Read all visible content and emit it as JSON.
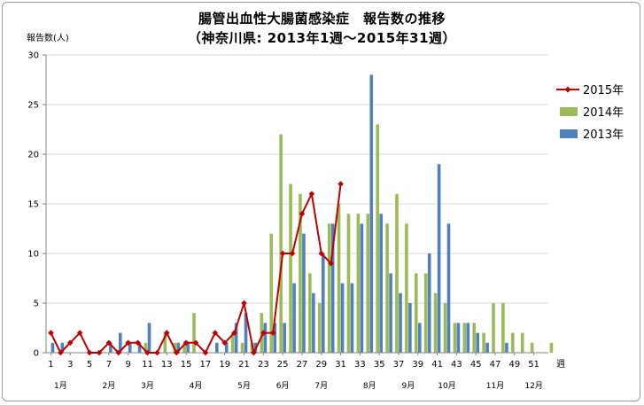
{
  "chart_data": {
    "type": "bar",
    "title": "腸管出血性大腸菌感染症　報告数の推移",
    "subtitle": "（神奈川県: 2013年1週～2015年31週）",
    "ylabel": "報告数(人)",
    "xlabel": "週",
    "ylim": [
      0,
      30
    ],
    "yticks": [
      0,
      5,
      10,
      15,
      20,
      25,
      30
    ],
    "xticks": [
      1,
      3,
      5,
      7,
      9,
      11,
      13,
      15,
      17,
      19,
      21,
      23,
      25,
      27,
      29,
      31,
      33,
      35,
      37,
      39,
      41,
      43,
      45,
      47,
      49,
      51
    ],
    "month_labels": [
      {
        "label": "1月",
        "week": 2
      },
      {
        "label": "2月",
        "week": 7
      },
      {
        "label": "3月",
        "week": 11
      },
      {
        "label": "4月",
        "week": 16
      },
      {
        "label": "5月",
        "week": 21
      },
      {
        "label": "6月",
        "week": 25
      },
      {
        "label": "7月",
        "week": 29
      },
      {
        "label": "8月",
        "week": 34
      },
      {
        "label": "9月",
        "week": 38
      },
      {
        "label": "10月",
        "week": 42
      },
      {
        "label": "11月",
        "week": 47
      },
      {
        "label": "12月",
        "week": 51
      }
    ],
    "legend_position": "right",
    "series": [
      {
        "name": "2015年",
        "kind": "line",
        "color": "#c00000",
        "values": [
          2,
          0,
          1,
          2,
          0,
          0,
          1,
          0,
          1,
          1,
          0,
          0,
          2,
          0,
          1,
          1,
          0,
          2,
          1,
          2,
          5,
          0,
          2,
          2,
          10,
          10,
          14,
          16,
          10,
          9,
          17
        ]
      },
      {
        "name": "2014年",
        "kind": "bar",
        "color": "#9bbb59",
        "values": [
          0,
          0,
          0,
          0,
          0,
          0,
          0,
          0,
          0,
          0,
          1,
          0,
          2,
          1,
          1,
          4,
          0,
          0,
          0,
          2,
          1,
          1,
          4,
          12,
          22,
          17,
          16,
          8,
          5,
          13,
          15,
          14,
          14,
          14,
          23,
          13,
          16,
          13,
          8,
          8,
          6,
          5,
          3,
          3,
          3,
          2,
          5,
          5,
          2,
          2,
          1,
          0,
          1
        ]
      },
      {
        "name": "2013年",
        "kind": "bar",
        "color": "#4f81bd",
        "values": [
          1,
          1,
          0,
          0,
          0,
          0,
          1,
          2,
          1,
          1,
          3,
          0,
          0,
          1,
          1,
          0,
          0,
          1,
          1,
          3,
          4,
          1,
          3,
          3,
          3,
          7,
          12,
          6,
          10,
          13,
          7,
          7,
          13,
          28,
          14,
          8,
          6,
          5,
          3,
          10,
          19,
          13,
          3,
          3,
          2,
          1,
          0,
          1,
          0,
          0,
          0,
          0
        ]
      }
    ]
  }
}
